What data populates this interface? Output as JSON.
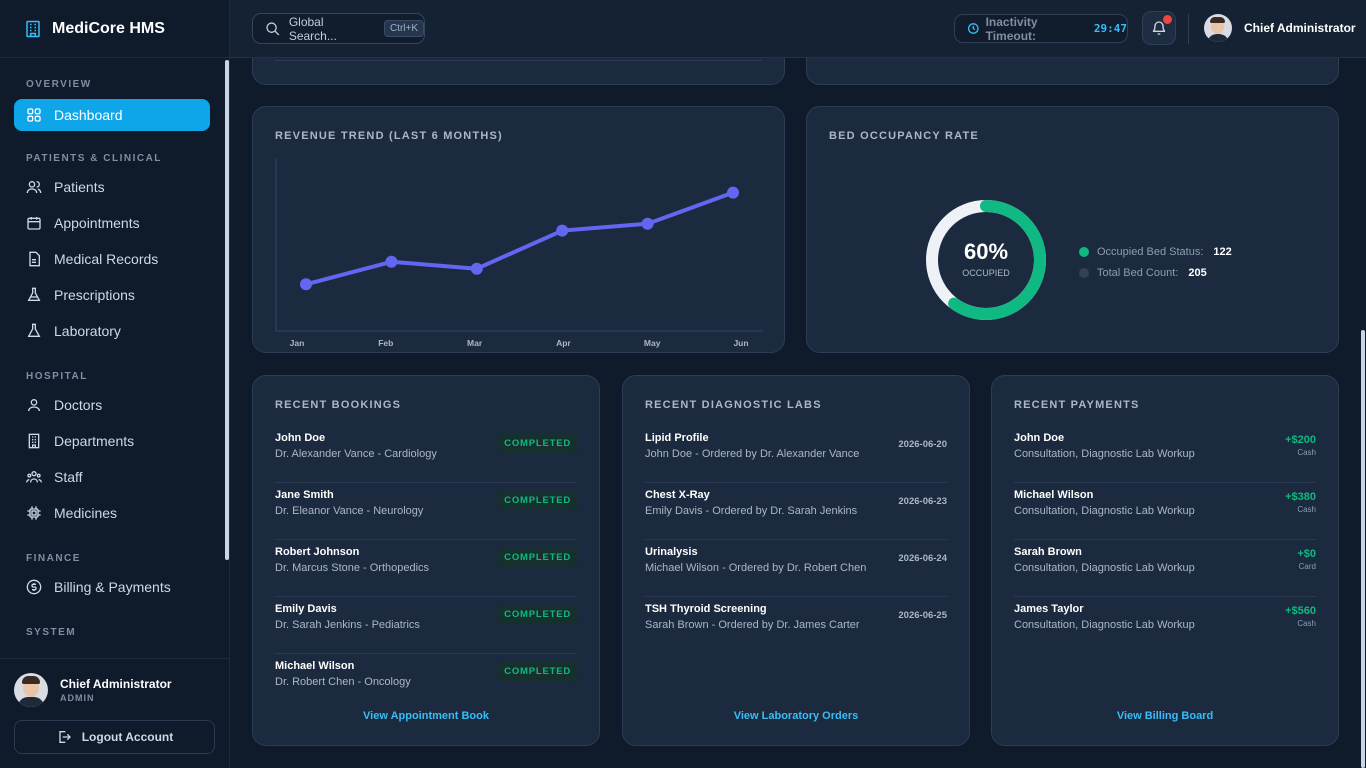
{
  "brand": {
    "name": "MediCore HMS"
  },
  "sidebar": {
    "sections": [
      {
        "label": "OVERVIEW",
        "items": [
          {
            "label": "Dashboard",
            "icon": "grid-icon",
            "active": true
          }
        ]
      },
      {
        "label": "PATIENTS & CLINICAL",
        "items": [
          {
            "label": "Patients",
            "icon": "users-icon"
          },
          {
            "label": "Appointments",
            "icon": "calendar-icon"
          },
          {
            "label": "Medical Records",
            "icon": "document-icon"
          },
          {
            "label": "Prescriptions",
            "icon": "flask-icon"
          },
          {
            "label": "Laboratory",
            "icon": "beaker-icon"
          }
        ]
      },
      {
        "label": "HOSPITAL",
        "items": [
          {
            "label": "Doctors",
            "icon": "user-icon"
          },
          {
            "label": "Departments",
            "icon": "building-icon"
          },
          {
            "label": "Staff",
            "icon": "team-icon"
          },
          {
            "label": "Medicines",
            "icon": "chip-icon"
          }
        ]
      },
      {
        "label": "FINANCE",
        "items": [
          {
            "label": "Billing & Payments",
            "icon": "dollar-icon"
          }
        ]
      },
      {
        "label": "SYSTEM",
        "items": []
      }
    ],
    "user": {
      "name": "Chief Administrator",
      "role": "ADMIN"
    },
    "logout_label": "Logout Account"
  },
  "topbar": {
    "search_placeholder": "Global Search...",
    "search_shortcut": "Ctrl+K",
    "timeout_label": "Inactivity Timeout:",
    "timeout_value": "29:47",
    "user_name": "Chief Administrator"
  },
  "revenue": {
    "title": "REVENUE TREND (LAST 6 MONTHS)",
    "chart_data": {
      "type": "line",
      "categories": [
        "Jan",
        "Feb",
        "Mar",
        "Apr",
        "May",
        "Jun"
      ],
      "values": [
        27,
        40,
        36,
        58,
        62,
        80
      ],
      "ylim": [
        0,
        100
      ],
      "grid": false,
      "color": "#6366f1"
    }
  },
  "occupancy": {
    "title": "BED OCCUPANCY RATE",
    "percent_label": "60%",
    "occupied_label": "OCCUPIED",
    "chart_data": {
      "type": "pie",
      "categories": [
        "Occupied",
        "Available"
      ],
      "values": [
        60,
        40
      ],
      "colors": [
        "#10b981",
        "#eef2f7"
      ]
    },
    "legend": [
      {
        "label": "Occupied Bed Status:",
        "value": "122",
        "color": "#10b981"
      },
      {
        "label": "Total Bed Count:",
        "value": "205",
        "color": "#334155"
      }
    ]
  },
  "bookings": {
    "title": "RECENT BOOKINGS",
    "rows": [
      {
        "name": "John Doe",
        "detail": "Dr. Alexander Vance - Cardiology",
        "status": "COMPLETED"
      },
      {
        "name": "Jane Smith",
        "detail": "Dr. Eleanor Vance - Neurology",
        "status": "COMPLETED"
      },
      {
        "name": "Robert Johnson",
        "detail": "Dr. Marcus Stone - Orthopedics",
        "status": "COMPLETED"
      },
      {
        "name": "Emily Davis",
        "detail": "Dr. Sarah Jenkins - Pediatrics",
        "status": "COMPLETED"
      },
      {
        "name": "Michael Wilson",
        "detail": "Dr. Robert Chen - Oncology",
        "status": "COMPLETED"
      }
    ],
    "link": "View Appointment Book"
  },
  "labs": {
    "title": "RECENT DIAGNOSTIC LABS",
    "rows": [
      {
        "test": "Lipid Profile",
        "detail": "John Doe - Ordered by Dr. Alexander Vance",
        "date": "2026-06-20"
      },
      {
        "test": "Chest X-Ray",
        "detail": "Emily Davis - Ordered by Dr. Sarah Jenkins",
        "date": "2026-06-23"
      },
      {
        "test": "Urinalysis",
        "detail": "Michael Wilson - Ordered by Dr. Robert Chen",
        "date": "2026-06-24"
      },
      {
        "test": "TSH Thyroid Screening",
        "detail": "Sarah Brown - Ordered by Dr. James Carter",
        "date": "2026-06-25"
      }
    ],
    "link": "View Laboratory Orders"
  },
  "payments": {
    "title": "RECENT PAYMENTS",
    "rows": [
      {
        "name": "John Doe",
        "detail": "Consultation, Diagnostic Lab Workup",
        "amount": "+$200",
        "method": "Cash"
      },
      {
        "name": "Michael Wilson",
        "detail": "Consultation, Diagnostic Lab Workup",
        "amount": "+$380",
        "method": "Cash"
      },
      {
        "name": "Sarah Brown",
        "detail": "Consultation, Diagnostic Lab Workup",
        "amount": "+$0",
        "method": "Card"
      },
      {
        "name": "James Taylor",
        "detail": "Consultation, Diagnostic Lab Workup",
        "amount": "+$560",
        "method": "Cash"
      }
    ],
    "link": "View Billing Board"
  }
}
